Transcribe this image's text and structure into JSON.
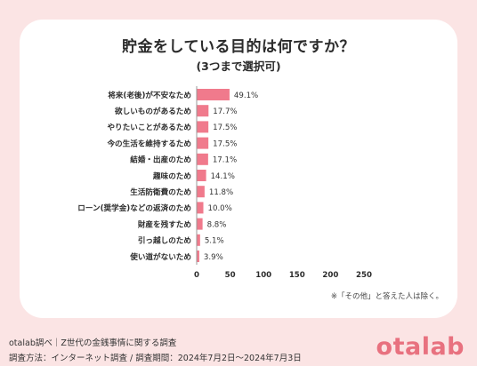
{
  "title": "貯金をしている目的は何ですか？",
  "subtitle": "(3つまで選択可)",
  "note": "※「その他」と答えた人は除く。",
  "footer": {
    "line1": "otalab調べ｜Z世代の金銭事情に関する調査",
    "line2": "調査方法：インターネット調査 / 調査期間：2024年7月2日〜2024年7月3日"
  },
  "logo": "otalab",
  "colors": {
    "bar": "#f07a8c",
    "background": "#fbe4e4",
    "axis": "#999999",
    "logo": "#e8717f"
  },
  "chart_data": {
    "type": "bar",
    "orientation": "horizontal",
    "title": "貯金をしている目的は何ですか？",
    "subtitle": "(3つまで選択可)",
    "categories": [
      "将来(老後)が不安なため",
      "欲しいものがあるため",
      "やりたいことがあるため",
      "今の生活を維持するため",
      "結婚・出産のため",
      "趣味のため",
      "生活防衛費のため",
      "ローン(奨学金)などの返済のため",
      "財産を残すため",
      "引っ越しのため",
      "使い道がないため"
    ],
    "values": [
      49.1,
      17.7,
      17.5,
      17.5,
      17.1,
      14.1,
      11.8,
      10.0,
      8.8,
      5.1,
      3.9
    ],
    "value_labels": [
      "49.1%",
      "17.7%",
      "17.5%",
      "17.5%",
      "17.1%",
      "14.1%",
      "11.8%",
      "10.0%",
      "8.8%",
      "5.1%",
      "3.9%"
    ],
    "xticks": [
      "0",
      "50",
      "100",
      "150",
      "200",
      "250"
    ],
    "xlim": [
      0,
      250
    ],
    "grid": false,
    "legend": "none"
  }
}
